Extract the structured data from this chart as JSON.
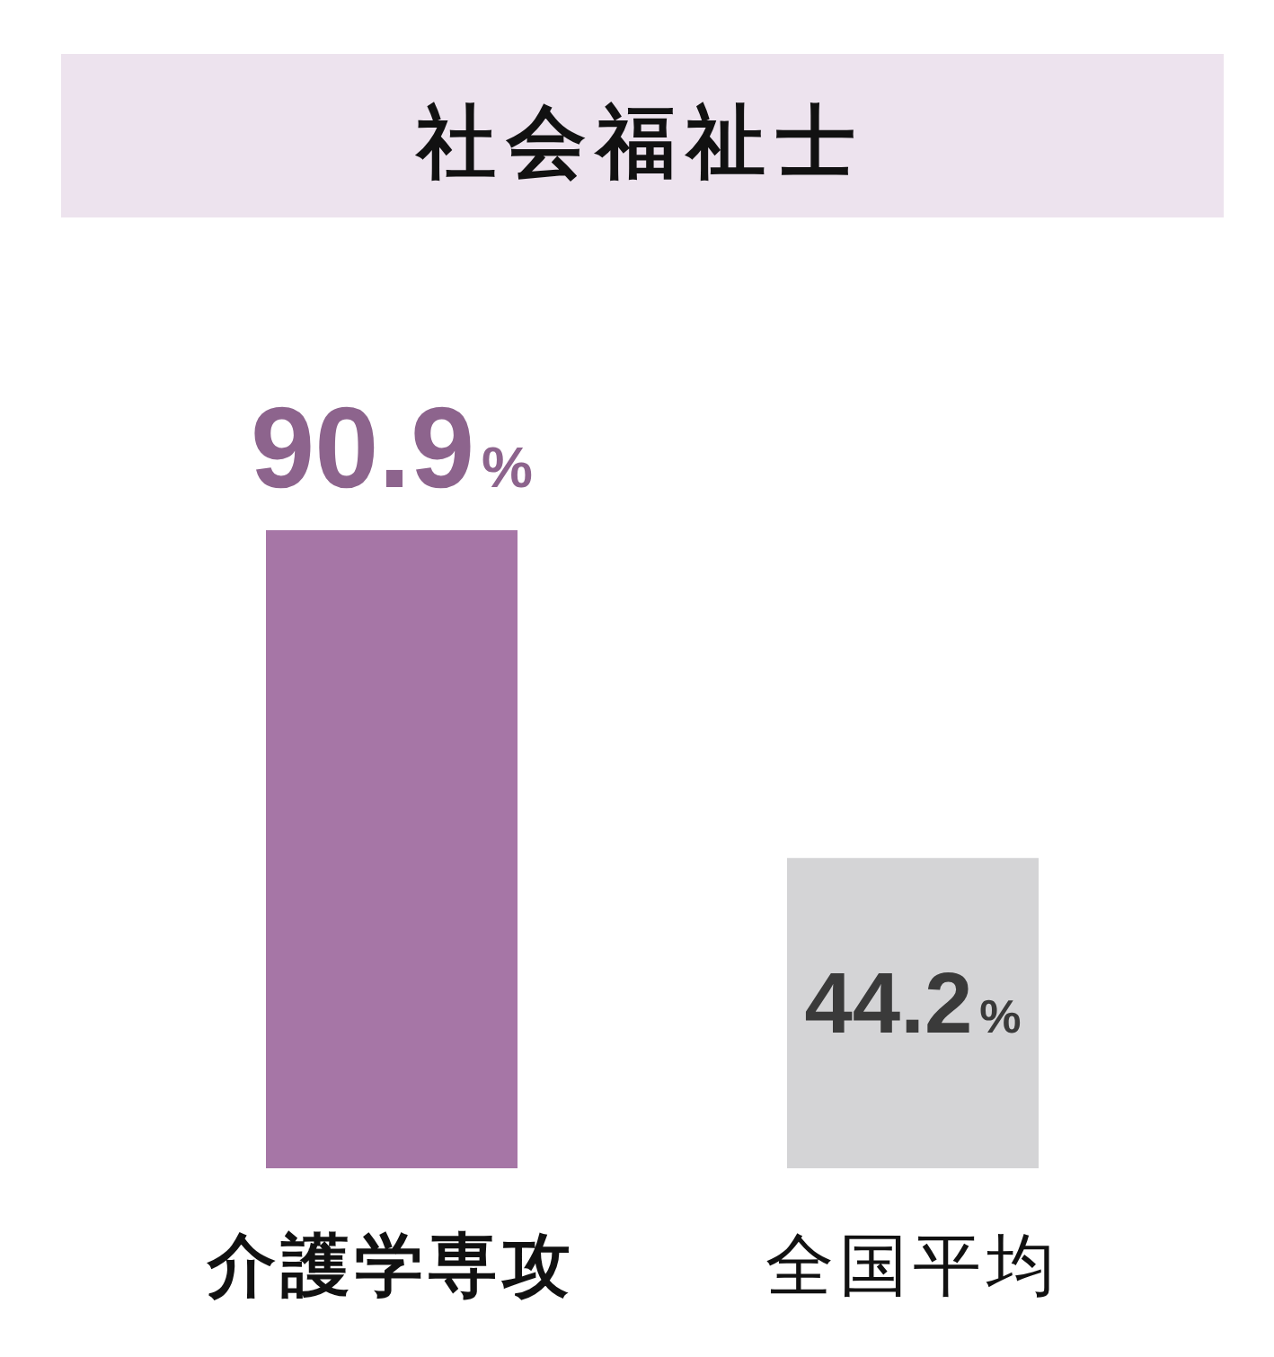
{
  "chart_data": {
    "type": "bar",
    "title": "社会福祉士",
    "categories": [
      "介護学専攻",
      "全国平均"
    ],
    "values": [
      90.9,
      44.2
    ],
    "colors": [
      "#a676a6",
      "#d4d4d6"
    ],
    "value_labels": [
      "90.9%",
      "44.2%"
    ]
  }
}
